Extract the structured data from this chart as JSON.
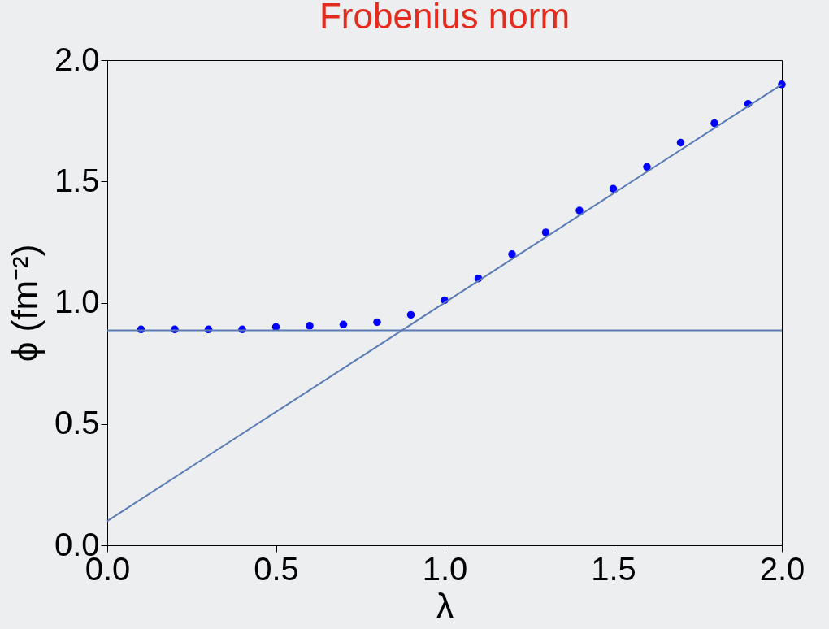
{
  "chart_data": {
    "type": "scatter",
    "title": "Frobenius norm",
    "xlabel": "λ",
    "ylabel": "ϕ (fm⁻²)",
    "xlim": [
      0,
      2
    ],
    "ylim": [
      0,
      2
    ],
    "xticks": [
      {
        "value": 0,
        "label": "0.0"
      },
      {
        "value": 0.5,
        "label": "0.5"
      },
      {
        "value": 1,
        "label": "1.0"
      },
      {
        "value": 1.5,
        "label": "1.5"
      },
      {
        "value": 2,
        "label": "2.0"
      }
    ],
    "yticks": [
      {
        "value": 0,
        "label": "0.0"
      },
      {
        "value": 0.5,
        "label": "0.5"
      },
      {
        "value": 1,
        "label": "1.0"
      },
      {
        "value": 1.5,
        "label": "1.5"
      },
      {
        "value": 2,
        "label": "2.0"
      }
    ],
    "grid": false,
    "series": [
      {
        "color": "#0000ff",
        "marker": "circle",
        "x": [
          0.1,
          0.2,
          0.3,
          0.4,
          0.5,
          0.6,
          0.7,
          0.8,
          0.9,
          1.0,
          1.1,
          1.2,
          1.3,
          1.4,
          1.5,
          1.6,
          1.7,
          1.8,
          1.9,
          2.0
        ],
        "values": [
          0.89,
          0.89,
          0.89,
          0.89,
          0.9,
          0.905,
          0.91,
          0.92,
          0.95,
          1.01,
          1.1,
          1.2,
          1.29,
          1.38,
          1.47,
          1.56,
          1.66,
          1.74,
          1.82,
          1.9
        ]
      },
      {
        "type": "line",
        "color": "#5b7bb5",
        "marker": "none",
        "line_style": "solid",
        "x": [
          0,
          2
        ],
        "values": [
          0.1,
          1.9
        ]
      },
      {
        "type": "line",
        "color": "#5b7bb5",
        "marker": "none",
        "line_style": "solid",
        "x": [
          0,
          2
        ],
        "values": [
          0.886,
          0.886
        ]
      }
    ]
  }
}
